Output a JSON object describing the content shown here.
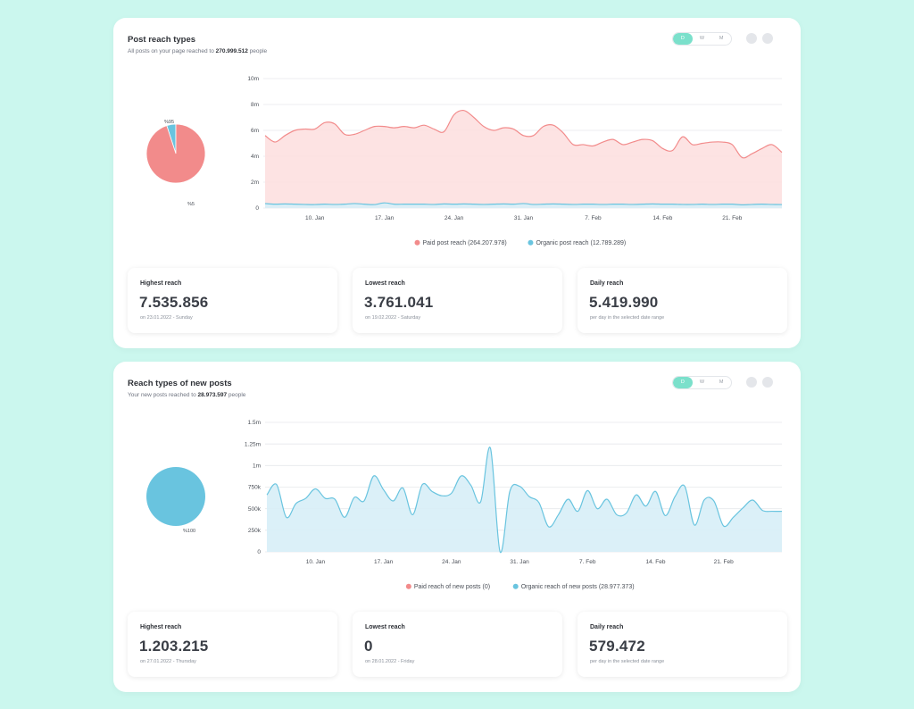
{
  "card1": {
    "title": "Post reach types",
    "subtitle_pre": "All posts on your page reached to ",
    "subtitle_value": "270.999.512",
    "subtitle_post": " people",
    "toggle": [
      "D",
      "W",
      "M"
    ],
    "stats": [
      {
        "label": "Highest reach",
        "value": "7.535.856",
        "note": "on 23.01.2022 - Sunday"
      },
      {
        "label": "Lowest reach",
        "value": "3.761.041",
        "note": "on 19.02.2022 - Saturday"
      },
      {
        "label": "Daily reach",
        "value": "5.419.990",
        "note": "per day in the selected date range"
      }
    ]
  },
  "card2": {
    "title": "Reach types of new posts",
    "subtitle_pre": "Your new posts reached to ",
    "subtitle_value": "28.973.597",
    "subtitle_post": " people",
    "toggle": [
      "D",
      "W",
      "M"
    ],
    "stats": [
      {
        "label": "Highest reach",
        "value": "1.203.215",
        "note": "on 27.01.2022 - Thursday"
      },
      {
        "label": "Lowest reach",
        "value": "0",
        "note": "on 28.01.2022 - Friday"
      },
      {
        "label": "Daily reach",
        "value": "579.472",
        "note": "per day in the selected date range"
      }
    ]
  },
  "colors": {
    "paid": "#f28b8b",
    "organic": "#69c4df",
    "paid_fill": "#fde0e0",
    "organic_fill": "#d7eef7",
    "accent": "#7be0cb"
  },
  "chart_data": [
    {
      "type": "pie",
      "slices": [
        {
          "name": "Paid post reach",
          "value": 95,
          "label": "%95"
        },
        {
          "name": "Organic post reach",
          "value": 5,
          "label": "%5"
        }
      ]
    },
    {
      "type": "area",
      "x_start": "2022-01-05",
      "x_ticks": [
        "10. Jan",
        "17. Jan",
        "24. Jan",
        "31. Jan",
        "7. Feb",
        "14. Feb",
        "21. Feb"
      ],
      "y_ticks": [
        "0",
        "2m",
        "4m",
        "6m",
        "8m",
        "10m"
      ],
      "ylim": [
        0,
        10000000
      ],
      "legend_placement": "bottom",
      "series": [
        {
          "name": "Paid post reach (264.207.978)",
          "color": "paid",
          "values": [
            5.6,
            5.1,
            5.6,
            6.0,
            6.1,
            6.1,
            6.6,
            6.5,
            5.7,
            5.7,
            6.0,
            6.3,
            6.3,
            6.2,
            6.3,
            6.2,
            6.4,
            6.1,
            5.9,
            7.2,
            7.54,
            7.0,
            6.3,
            6.0,
            6.2,
            6.1,
            5.6,
            5.6,
            6.3,
            6.4,
            5.8,
            4.9,
            4.9,
            4.8,
            5.1,
            5.3,
            4.9,
            5.1,
            5.3,
            5.2,
            4.6,
            4.45,
            5.5,
            4.9,
            5.0,
            5.1,
            5.1,
            4.9,
            3.9,
            4.2,
            4.6,
            4.9,
            4.3
          ]
        },
        {
          "name": "Organic post reach (12.789.289)",
          "color": "organic",
          "values": [
            0.35,
            0.3,
            0.32,
            0.3,
            0.28,
            0.27,
            0.3,
            0.28,
            0.3,
            0.35,
            0.3,
            0.27,
            0.4,
            0.3,
            0.3,
            0.3,
            0.3,
            0.28,
            0.32,
            0.3,
            0.32,
            0.3,
            0.28,
            0.3,
            0.32,
            0.3,
            0.35,
            0.28,
            0.3,
            0.32,
            0.3,
            0.28,
            0.3,
            0.3,
            0.28,
            0.3,
            0.3,
            0.28,
            0.3,
            0.32,
            0.3,
            0.3,
            0.28,
            0.28,
            0.3,
            0.28,
            0.3,
            0.3,
            0.25,
            0.28,
            0.3,
            0.28,
            0.27
          ]
        }
      ]
    },
    {
      "type": "pie",
      "slices": [
        {
          "name": "Organic reach of new posts",
          "value": 100,
          "label": "%100"
        }
      ]
    },
    {
      "type": "area",
      "x_start": "2022-01-05",
      "x_ticks": [
        "10. Jan",
        "17. Jan",
        "24. Jan",
        "31. Jan",
        "7. Feb",
        "14. Feb",
        "21. Feb"
      ],
      "y_ticks": [
        "0",
        "250k",
        "500k",
        "750k",
        "1m",
        "1.25m",
        "1.5m"
      ],
      "ylim": [
        0,
        1500000
      ],
      "legend_placement": "bottom",
      "series": [
        {
          "name": "Paid reach of new posts (0)",
          "color": "paid",
          "values": []
        },
        {
          "name": "Organic reach of new posts (28.977.373)",
          "color": "organic",
          "values": [
            660,
            780,
            400,
            560,
            620,
            730,
            620,
            610,
            400,
            630,
            590,
            880,
            720,
            590,
            740,
            430,
            780,
            700,
            650,
            680,
            880,
            770,
            580,
            1203,
            0,
            700,
            760,
            640,
            570,
            290,
            430,
            610,
            470,
            710,
            500,
            610,
            430,
            450,
            660,
            530,
            700,
            420,
            640,
            760,
            310,
            600,
            590,
            300,
            400,
            510,
            600,
            480,
            470,
            470
          ]
        }
      ]
    }
  ]
}
